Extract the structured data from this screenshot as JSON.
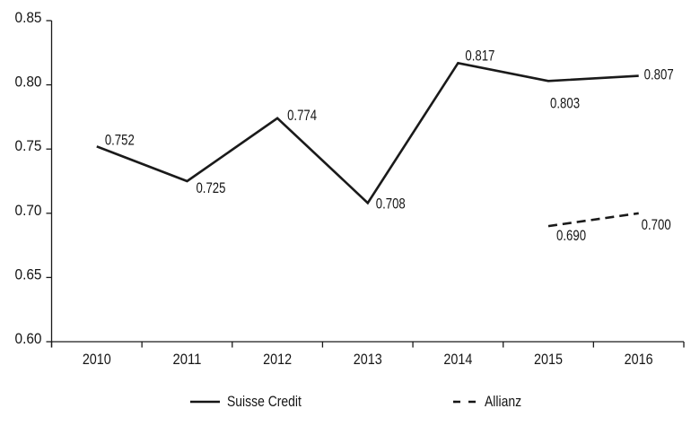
{
  "chart_data": {
    "type": "line",
    "categories": [
      "2010",
      "2011",
      "2012",
      "2013",
      "2014",
      "2015",
      "2016"
    ],
    "series": [
      {
        "name": "Suisse Credit",
        "line_style": "solid",
        "color": "#1a1a1a",
        "values": [
          0.752,
          0.725,
          0.774,
          0.708,
          0.817,
          0.803,
          0.807
        ],
        "point_labels": [
          "0.752",
          "0.725",
          "0.774",
          "0.708",
          "0.817",
          "0.803",
          "0.807"
        ],
        "label_offsets": [
          [
            9,
            -2
          ],
          [
            10,
            13
          ],
          [
            11,
            2
          ],
          [
            9,
            6
          ],
          [
            8,
            -3
          ],
          [
            2,
            30
          ],
          [
            6,
            4
          ]
        ]
      },
      {
        "name": "Allianz",
        "line_style": "dashed",
        "color": "#1a1a1a",
        "values": [
          null,
          null,
          null,
          null,
          null,
          0.69,
          0.7
        ],
        "point_labels": [
          null,
          null,
          null,
          null,
          null,
          "0.690",
          "0.700"
        ],
        "label_offsets": [
          null,
          null,
          null,
          null,
          null,
          [
            9,
            16
          ],
          [
            3,
            18
          ]
        ]
      }
    ],
    "title": "",
    "xlabel": "",
    "ylabel": "",
    "ylim": [
      0.6,
      0.85
    ],
    "yticks": [
      0.6,
      0.65,
      0.7,
      0.75,
      0.8,
      0.85
    ],
    "ytick_labels": [
      "0.60",
      "0.65",
      "0.70",
      "0.75",
      "0.80",
      "0.85"
    ],
    "grid": false,
    "legend_position": "bottom",
    "axis_color": "#1a1a1a",
    "background": "#ffffff"
  },
  "legend": {
    "items": [
      {
        "label": "Suisse Credit",
        "style": "solid"
      },
      {
        "label": "Allianz",
        "style": "dashed"
      }
    ]
  }
}
